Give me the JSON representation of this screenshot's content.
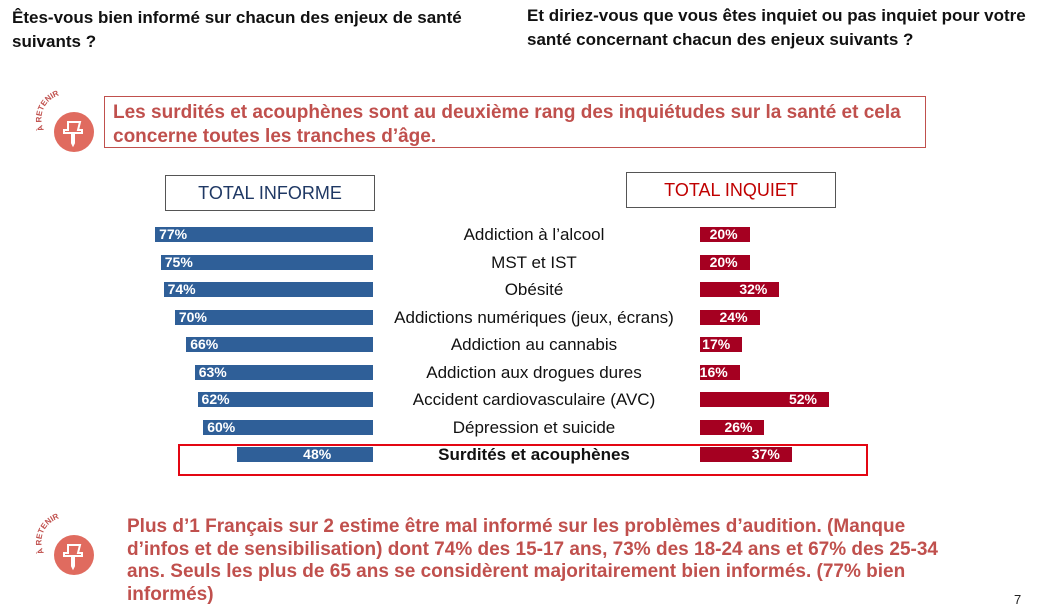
{
  "questions": {
    "left": "Êtes-vous bien informé sur chacun des enjeux de santé suivants ?",
    "right": "Et diriez-vous que vous êtes inquiet ou pas inquiet pour votre santé concernant chacun des enjeux suivants ?"
  },
  "badge_text": "À RETENIR",
  "callouts": {
    "top": "Les surdités et acouphènes sont au deuxième rang des inquiétudes sur la santé et cela concerne toutes les tranches d’âge.",
    "bottom": "Plus d’1 Français sur 2 estime être mal informé sur les problèmes d’audition. (Manque d’infos et de sensibilisation) dont 74% des 15-17 ans, 73% des 18-24 ans et 67% des 25-34 ans. Seuls les plus de 65 ans se considèrent majoritairement bien informés. (77% bien informés)"
  },
  "page_number": "7",
  "colors": {
    "informe": "#2f5f98",
    "inquiet": "#a50021",
    "accent": "#c0504d",
    "highlight": "#e30613"
  },
  "chart_data": {
    "type": "bar",
    "categories": [
      "Addiction à l’alcool",
      "MST et IST",
      "Obésité",
      "Addictions numériques (jeux, écrans)",
      "Addiction au cannabis",
      "Addiction aux drogues dures",
      "Accident cardiovasculaire (AVC)",
      "Dépression et suicide",
      "Surdités et acouphènes"
    ],
    "series": [
      {
        "name": "TOTAL INFORME",
        "values": [
          77,
          75,
          74,
          70,
          66,
          63,
          62,
          60,
          48
        ]
      },
      {
        "name": "TOTAL INQUIET",
        "values": [
          20,
          20,
          32,
          24,
          17,
          16,
          52,
          26,
          37
        ]
      }
    ],
    "value_suffix": "%",
    "highlighted_category": "Surdités et acouphènes"
  }
}
